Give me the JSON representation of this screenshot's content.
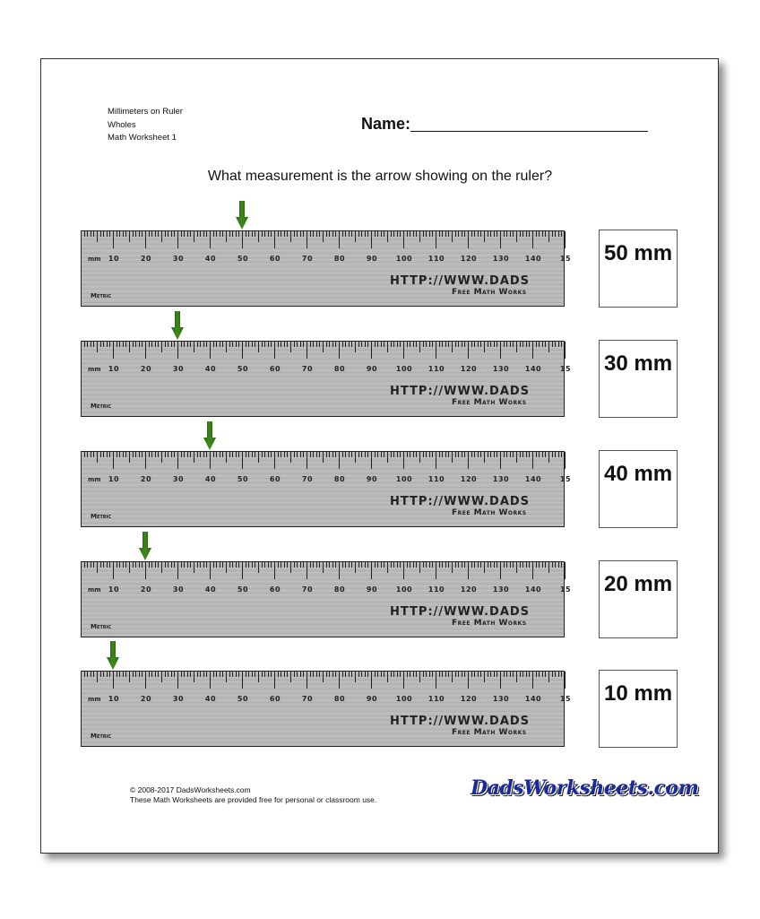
{
  "header": {
    "line1": "Millimeters on Ruler",
    "line2": "Wholes",
    "line3": "Math Worksheet 1"
  },
  "name_label": "Name:",
  "question": "What measurement is the arrow showing on the ruler?",
  "ruler": {
    "unit": "mm",
    "labels": [
      "10",
      "20",
      "30",
      "40",
      "50",
      "60",
      "70",
      "80",
      "90",
      "100",
      "110",
      "120",
      "130",
      "140",
      "15"
    ],
    "url_text": "HTTP://WWW.DADS",
    "free_text": "Free Math Works",
    "metric_text": "Metric"
  },
  "problems": [
    {
      "arrow_mm": 50,
      "answer": "50 mm"
    },
    {
      "arrow_mm": 30,
      "answer": "30 mm"
    },
    {
      "arrow_mm": 40,
      "answer": "40 mm"
    },
    {
      "arrow_mm": 20,
      "answer": "20 mm"
    },
    {
      "arrow_mm": 10,
      "answer": "10 mm"
    }
  ],
  "footer": {
    "copyright": "© 2008-2017 DadsWorksheets.com",
    "note": "These Math Worksheets are provided free for personal or classroom use."
  },
  "logo_text": "DadsWorksheets.com",
  "colors": {
    "arrow": "#3f8a1c",
    "ruler": "#bcbcbc"
  }
}
